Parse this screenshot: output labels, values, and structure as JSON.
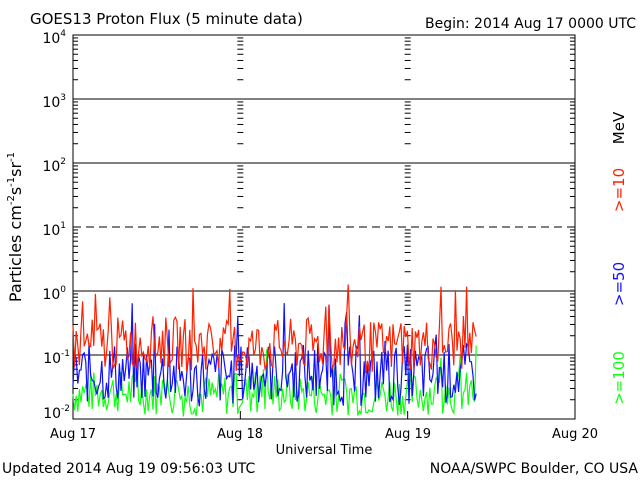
{
  "header": {
    "title": "GOES13 Proton Flux (5 minute data)",
    "begin": "Begin: 2014 Aug 17 0000 UTC"
  },
  "footer": {
    "updated": "Updated 2014 Aug 19 09:56:03 UTC",
    "credit": "NOAA/SWPC Boulder, CO USA"
  },
  "y_axis": {
    "label_main": "Particles cm",
    "label_exp1": "-2",
    "label_s": "s",
    "label_exp2": "-1",
    "label_sr": "sr",
    "label_exp3": "-1",
    "ticks": [
      {
        "base": "10",
        "exp": "4"
      },
      {
        "base": "10",
        "exp": "3"
      },
      {
        "base": "10",
        "exp": "2"
      },
      {
        "base": "10",
        "exp": "1"
      },
      {
        "base": "10",
        "exp": "0"
      },
      {
        "base": "10",
        "exp": "-1"
      },
      {
        "base": "10",
        "exp": "-2"
      }
    ]
  },
  "x_axis": {
    "label": "Universal Time",
    "ticks": [
      "Aug 17",
      "Aug 18",
      "Aug 19",
      "Aug 20"
    ]
  },
  "legend": {
    "mev": "MeV",
    "ge10": ">=10",
    "ge50": ">=50",
    "ge100": ">=100"
  },
  "colors": {
    "ge10": "#ff2000",
    "ge50": "#1010ff",
    "ge100": "#10ff10",
    "axis": "#000000"
  },
  "chart_data": {
    "type": "line",
    "title": "GOES13 Proton Flux (5 minute data)",
    "xlabel": "Universal Time",
    "ylabel": "Particles cm-2 s-1 sr-1",
    "yscale": "log",
    "ylim": [
      0.01,
      10000
    ],
    "xlim": [
      "2014-08-17 00:00",
      "2014-08-20 00:00"
    ],
    "series": [
      {
        "name": ">=10 MeV",
        "color": "#ff2000",
        "x": [
          "2014-08-17 00:00",
          "2014-08-17 06:00",
          "2014-08-17 12:00",
          "2014-08-17 18:00",
          "2014-08-18 00:00",
          "2014-08-18 06:00",
          "2014-08-18 12:00",
          "2014-08-18 18:00",
          "2014-08-19 00:00",
          "2014-08-19 06:00",
          "2014-08-19 09:55"
        ],
        "values": [
          0.14,
          0.15,
          0.16,
          0.14,
          0.13,
          0.14,
          0.15,
          0.13,
          0.14,
          0.15,
          0.16
        ]
      },
      {
        "name": ">=50 MeV",
        "color": "#1010ff",
        "x": [
          "2014-08-17 00:00",
          "2014-08-17 06:00",
          "2014-08-17 12:00",
          "2014-08-17 18:00",
          "2014-08-18 00:00",
          "2014-08-18 06:00",
          "2014-08-18 12:00",
          "2014-08-18 18:00",
          "2014-08-19 00:00",
          "2014-08-19 06:00",
          "2014-08-19 09:55"
        ],
        "values": [
          0.05,
          0.055,
          0.05,
          0.045,
          0.05,
          0.055,
          0.05,
          0.045,
          0.05,
          0.052,
          0.05
        ]
      },
      {
        "name": ">=100 MeV",
        "color": "#10ff10",
        "x": [
          "2014-08-17 00:00",
          "2014-08-17 06:00",
          "2014-08-17 12:00",
          "2014-08-17 18:00",
          "2014-08-18 00:00",
          "2014-08-18 06:00",
          "2014-08-18 12:00",
          "2014-08-18 18:00",
          "2014-08-19 00:00",
          "2014-08-19 06:00",
          "2014-08-19 09:55"
        ],
        "values": [
          0.025,
          0.027,
          0.025,
          0.023,
          0.025,
          0.026,
          0.025,
          0.024,
          0.025,
          0.026,
          0.025
        ]
      }
    ],
    "reference_lines": [
      {
        "y": 10,
        "style": "dashed"
      },
      {
        "y": 0.1,
        "style": "solid"
      }
    ],
    "grid": true
  }
}
